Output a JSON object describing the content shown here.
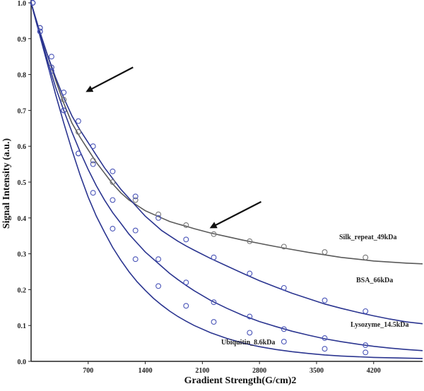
{
  "chart_data": {
    "type": "scatter",
    "title": "",
    "xlabel": "Gradient Strength(G/cm)2",
    "ylabel": "Signal Intensity (a.u.)",
    "xlim": [
      0,
      4800
    ],
    "ylim": [
      0,
      1.0
    ],
    "xticks": [
      "700",
      "1400",
      "2100",
      "2800",
      "3500",
      "4200"
    ],
    "xtick_values": [
      700,
      1400,
      2100,
      2800,
      3500,
      4200
    ],
    "yticks": [
      "0.0",
      "0.1",
      "0.2",
      "0.3",
      "0.4",
      "0.5",
      "0.6",
      "0.7",
      "0.8",
      "0.9",
      "1.0"
    ],
    "ytick_values": [
      0,
      0.1,
      0.2,
      0.3,
      0.4,
      0.5,
      0.6,
      0.7,
      0.8,
      0.9,
      1.0
    ],
    "grid": false,
    "legend": "none",
    "series": [
      {
        "name": "Silk_repeat_49kDa",
        "color": "#5a5a5a",
        "marker_color": "#777777",
        "x": [
          20,
          110,
          250,
          400,
          580,
          760,
          1000,
          1280,
          1560,
          1900,
          2240,
          2680,
          3100,
          3600,
          4100
        ],
        "y": [
          1.0,
          0.93,
          0.82,
          0.73,
          0.64,
          0.56,
          0.5,
          0.45,
          0.41,
          0.38,
          0.355,
          0.335,
          0.32,
          0.305,
          0.29
        ],
        "curve_x": [
          0,
          100,
          200,
          300,
          400,
          500,
          600,
          700,
          800,
          900,
          1000,
          1100,
          1200,
          1300,
          1400,
          1500,
          1600,
          1700,
          1800,
          1900,
          2000,
          2200,
          2400,
          2600,
          2800,
          3000,
          3200,
          3400,
          3600,
          3800,
          4000,
          4200,
          4400,
          4600,
          4800
        ],
        "curve_y": [
          1.0,
          0.922,
          0.855,
          0.785,
          0.72,
          0.665,
          0.625,
          0.59,
          0.555,
          0.525,
          0.495,
          0.47,
          0.45,
          0.435,
          0.42,
          0.41,
          0.4,
          0.39,
          0.383,
          0.377,
          0.37,
          0.358,
          0.348,
          0.338,
          0.329,
          0.32,
          0.312,
          0.304,
          0.297,
          0.29,
          0.285,
          0.28,
          0.277,
          0.274,
          0.272
        ]
      },
      {
        "name": "BSA_66kDa",
        "color": "#2b3590",
        "marker_color": "#4a55b8",
        "x": [
          20,
          110,
          250,
          400,
          580,
          760,
          1000,
          1280,
          1560,
          1900,
          2240,
          2680,
          3100,
          3600,
          4100
        ],
        "y": [
          1.0,
          0.93,
          0.85,
          0.75,
          0.67,
          0.6,
          0.53,
          0.46,
          0.4,
          0.34,
          0.29,
          0.245,
          0.205,
          0.17,
          0.14
        ],
        "curve_x": [
          0,
          100,
          200,
          300,
          400,
          500,
          600,
          700,
          800,
          900,
          1000,
          1100,
          1200,
          1300,
          1400,
          1500,
          1600,
          1700,
          1800,
          1900,
          2000,
          2200,
          2400,
          2600,
          2800,
          3000,
          3200,
          3400,
          3600,
          3800,
          4000,
          4200,
          4400,
          4600,
          4800
        ],
        "curve_y": [
          1.0,
          0.925,
          0.855,
          0.792,
          0.735,
          0.685,
          0.645,
          0.61,
          0.575,
          0.54,
          0.51,
          0.48,
          0.455,
          0.43,
          0.405,
          0.385,
          0.365,
          0.35,
          0.335,
          0.322,
          0.31,
          0.287,
          0.266,
          0.245,
          0.225,
          0.207,
          0.19,
          0.175,
          0.16,
          0.148,
          0.137,
          0.127,
          0.118,
          0.11,
          0.105
        ]
      },
      {
        "name": "Lysozyme_14.5kDa",
        "color": "#2b3590",
        "marker_color": "#4a55b8",
        "x": [
          20,
          110,
          250,
          400,
          580,
          760,
          1000,
          1280,
          1560,
          1900,
          2240,
          2680,
          3100,
          3600,
          4100
        ],
        "y": [
          1.0,
          0.92,
          0.82,
          0.7,
          0.58,
          0.55,
          0.45,
          0.365,
          0.285,
          0.22,
          0.165,
          0.125,
          0.09,
          0.065,
          0.045
        ],
        "curve_x": [
          0,
          100,
          200,
          300,
          400,
          500,
          600,
          700,
          800,
          900,
          1000,
          1100,
          1200,
          1300,
          1400,
          1500,
          1600,
          1700,
          1800,
          1900,
          2000,
          2200,
          2400,
          2600,
          2800,
          3000,
          3200,
          3400,
          3600,
          3800,
          4000,
          4200,
          4400,
          4600,
          4800
        ],
        "curve_y": [
          1.0,
          0.92,
          0.84,
          0.765,
          0.7,
          0.64,
          0.585,
          0.535,
          0.49,
          0.45,
          0.415,
          0.385,
          0.355,
          0.33,
          0.305,
          0.285,
          0.265,
          0.245,
          0.228,
          0.212,
          0.197,
          0.17,
          0.148,
          0.128,
          0.111,
          0.097,
          0.084,
          0.073,
          0.063,
          0.055,
          0.048,
          0.042,
          0.037,
          0.033,
          0.03
        ]
      },
      {
        "name": "Ubiquitin_8.6kDa",
        "color": "#2b3590",
        "marker_color": "#4a55b8",
        "x": [
          20,
          110,
          250,
          400,
          580,
          760,
          1000,
          1280,
          1560,
          1900,
          2240,
          2680,
          3100,
          3600,
          4100
        ],
        "y": [
          1.0,
          0.92,
          0.81,
          0.7,
          0.58,
          0.47,
          0.37,
          0.285,
          0.21,
          0.155,
          0.11,
          0.08,
          0.055,
          0.035,
          0.025
        ],
        "curve_x": [
          0,
          100,
          200,
          300,
          400,
          500,
          600,
          700,
          800,
          900,
          1000,
          1100,
          1200,
          1300,
          1400,
          1500,
          1600,
          1700,
          1800,
          1900,
          2000,
          2200,
          2400,
          2600,
          2800,
          3000,
          3200,
          3400,
          3600,
          3800,
          4000,
          4200,
          4400,
          4600,
          4800
        ],
        "curve_y": [
          1.0,
          0.915,
          0.83,
          0.745,
          0.665,
          0.59,
          0.52,
          0.458,
          0.405,
          0.36,
          0.318,
          0.282,
          0.25,
          0.222,
          0.198,
          0.176,
          0.157,
          0.14,
          0.125,
          0.112,
          0.1,
          0.08,
          0.064,
          0.051,
          0.041,
          0.033,
          0.027,
          0.022,
          0.018,
          0.015,
          0.013,
          0.011,
          0.01,
          0.009,
          0.008
        ]
      }
    ],
    "annotations": [
      {
        "type": "arrow",
        "tip": [
          700,
          0.755
        ],
        "tail": [
          1250,
          0.82
        ],
        "color": "#111111"
      },
      {
        "type": "arrow",
        "tip": [
          2220,
          0.375
        ],
        "tail": [
          2820,
          0.445
        ],
        "color": "#111111"
      }
    ]
  }
}
